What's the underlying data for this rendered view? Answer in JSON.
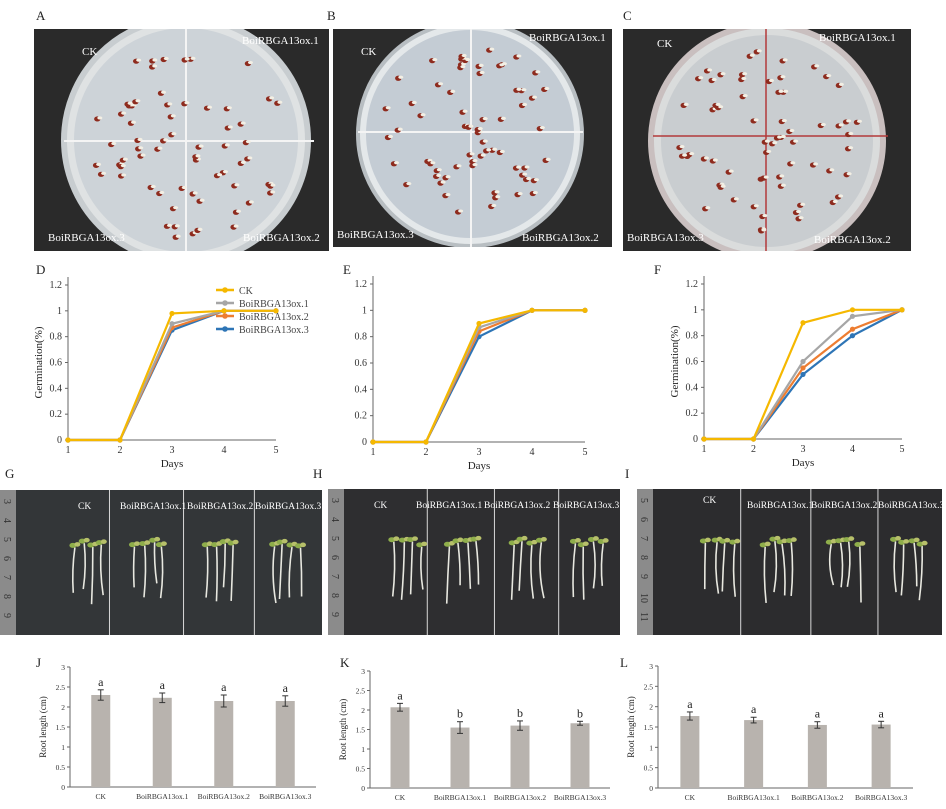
{
  "panel_letters": {
    "A": "A",
    "B": "B",
    "C": "C",
    "D": "D",
    "E": "E",
    "F": "F",
    "G": "G",
    "H": "H",
    "I": "I",
    "J": "J",
    "K": "K",
    "L": "L"
  },
  "dishes": [
    {
      "panel": "A",
      "ck": "CK",
      "ox1": "BoiRBGA13ox.1",
      "ox2": "BoiRBGA13ox.2",
      "ox3": "BoiRBGA13ox.3"
    },
    {
      "panel": "B",
      "ck": "CK",
      "ox1": "BoiRBGA13ox.1",
      "ox2": "BoiRBGA13ox.2",
      "ox3": "BoiRBGA13ox.3"
    },
    {
      "panel": "C",
      "ck": "CK",
      "ox1": "BoiRBGA13ox.1",
      "ox2": "BoiRBGA13ox.2",
      "ox3": "BoiRBGA13ox.3"
    }
  ],
  "seedlings": [
    {
      "panel": "G",
      "labels": [
        "CK",
        "BoiRBGA13ox.1",
        "BoiRBGA13ox.2",
        "BoiRBGA13ox.3"
      ],
      "ruler": [
        "3",
        "4",
        "5",
        "6",
        "7",
        "8",
        "9"
      ]
    },
    {
      "panel": "H",
      "labels": [
        "CK",
        "BoiRBGA13ox.1",
        "BoiRBGA13ox.2",
        "BoiRBGA13ox.3"
      ],
      "ruler": [
        "3",
        "4",
        "5",
        "6",
        "7",
        "8",
        "9"
      ]
    },
    {
      "panel": "I",
      "labels": [
        "CK",
        "BoiRBGA13ox.1",
        "BoiRBGA13ox.2",
        "BoiRBGA13ox.3"
      ],
      "ruler": [
        "5",
        "6",
        "7",
        "8",
        "9",
        "10",
        "11"
      ]
    }
  ],
  "colors": {
    "CK": "#f5b800",
    "ox1": "#a6a6a6",
    "ox2": "#ed7d31",
    "ox3": "#2e75b6",
    "bar": "#b8b3ae"
  },
  "chart_data": [
    {
      "panel": "D",
      "type": "line",
      "xlabel": "Days",
      "ylabel": "Germination(%)",
      "x": [
        1,
        2,
        3,
        4,
        5
      ],
      "xticks": [
        "1",
        "2",
        "3",
        "4",
        "5"
      ],
      "ylim": [
        0,
        1.2
      ],
      "yticks": [
        "0",
        "0.2",
        "0.4",
        "0.6",
        "0.8",
        "1",
        "1.2"
      ],
      "legend": "top-right",
      "series": [
        {
          "name": "CK",
          "color_key": "CK",
          "values": [
            0,
            0,
            0.98,
            1,
            1
          ]
        },
        {
          "name": "BoiRBGA13ox.1",
          "color_key": "ox1",
          "values": [
            0,
            0,
            0.9,
            1,
            1
          ]
        },
        {
          "name": "BoiRBGA13ox.2",
          "color_key": "ox2",
          "values": [
            0,
            0,
            0.87,
            1,
            1
          ]
        },
        {
          "name": "BoiRBGA13ox.3",
          "color_key": "ox3",
          "values": [
            0,
            0,
            0.85,
            1,
            1
          ]
        }
      ]
    },
    {
      "panel": "E",
      "type": "line",
      "xlabel": "Days",
      "ylabel": "Germination(%)",
      "x": [
        1,
        2,
        3,
        4,
        5
      ],
      "xticks": [
        "1",
        "2",
        "3",
        "4",
        "5"
      ],
      "ylim": [
        0,
        1.2
      ],
      "yticks": [
        "0",
        "0.2",
        "0.4",
        "0.6",
        "0.8",
        "1",
        "1.2"
      ],
      "series": [
        {
          "name": "CK",
          "color_key": "CK",
          "values": [
            0,
            0,
            0.9,
            1,
            1
          ]
        },
        {
          "name": "BoiRBGA13ox.1",
          "color_key": "ox1",
          "values": [
            0,
            0,
            0.87,
            1,
            1
          ]
        },
        {
          "name": "BoiRBGA13ox.2",
          "color_key": "ox2",
          "values": [
            0,
            0,
            0.84,
            1,
            1
          ]
        },
        {
          "name": "BoiRBGA13ox.3",
          "color_key": "ox3",
          "values": [
            0,
            0,
            0.8,
            1,
            1
          ]
        }
      ]
    },
    {
      "panel": "F",
      "type": "line",
      "xlabel": "Days",
      "ylabel": "Germination(%)",
      "x": [
        1,
        2,
        3,
        4,
        5
      ],
      "xticks": [
        "1",
        "2",
        "3",
        "4",
        "5"
      ],
      "ylim": [
        0,
        1.2
      ],
      "yticks": [
        "0",
        "0.2",
        "0.4",
        "0.6",
        "0.8",
        "1",
        "1.2"
      ],
      "series": [
        {
          "name": "CK",
          "color_key": "CK",
          "values": [
            0,
            0,
            0.9,
            1,
            1
          ]
        },
        {
          "name": "BoiRBGA13ox.1",
          "color_key": "ox1",
          "values": [
            0,
            0,
            0.6,
            0.95,
            1
          ]
        },
        {
          "name": "BoiRBGA13ox.2",
          "color_key": "ox2",
          "values": [
            0,
            0,
            0.55,
            0.85,
            1
          ]
        },
        {
          "name": "BoiRBGA13ox.3",
          "color_key": "ox3",
          "values": [
            0,
            0,
            0.5,
            0.8,
            1
          ]
        }
      ]
    },
    {
      "panel": "J",
      "type": "bar",
      "ylabel": "Root length (cm)",
      "ylim": [
        0,
        3
      ],
      "yticks": [
        "0",
        "0.5",
        "1",
        "1.5",
        "2",
        "2.5",
        "3"
      ],
      "categories": [
        "CK",
        "BoiRBGA13ox.1",
        "BoiRBGA13ox.2",
        "BoiRBGA13ox.3"
      ],
      "values": [
        2.3,
        2.23,
        2.15,
        2.15
      ],
      "errors": [
        0.13,
        0.12,
        0.15,
        0.13
      ],
      "letters": [
        "a",
        "a",
        "a",
        "a"
      ]
    },
    {
      "panel": "K",
      "type": "bar",
      "ylabel": "Root length (cm)",
      "ylim": [
        0,
        3
      ],
      "yticks": [
        "0",
        "0.5",
        "1",
        "1.5",
        "2",
        "2.5",
        "3"
      ],
      "categories": [
        "CK",
        "BoiRBGA13ox.1",
        "BoiRBGA13ox.2",
        "BoiRBGA13ox.3"
      ],
      "values": [
        2.07,
        1.55,
        1.6,
        1.66
      ],
      "errors": [
        0.1,
        0.15,
        0.12,
        0.05
      ],
      "letters": [
        "a",
        "b",
        "b",
        "b"
      ]
    },
    {
      "panel": "L",
      "type": "bar",
      "ylabel": "Root length (cm)",
      "ylim": [
        0,
        3
      ],
      "yticks": [
        "0",
        "0.5",
        "1",
        "1.5",
        "2",
        "2.5",
        "3"
      ],
      "categories": [
        "CK",
        "BoiRBGA13ox.1",
        "BoiRBGA13ox.2",
        "BoiRBGA13ox.3"
      ],
      "values": [
        1.77,
        1.67,
        1.55,
        1.56
      ],
      "errors": [
        0.1,
        0.07,
        0.08,
        0.08
      ],
      "letters": [
        "a",
        "a",
        "a",
        "a"
      ]
    }
  ]
}
